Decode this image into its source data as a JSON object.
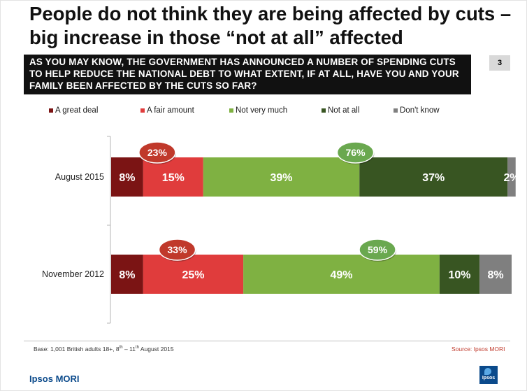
{
  "slide": {
    "title": "People do not think they are being affected by cuts – big increase in those “not at all” affected",
    "question": "AS YOU MAY KNOW, THE GOVERNMENT HAS ANNOUNCED A NUMBER OF SPENDING CUTS TO HELP REDUCE THE NATIONAL DEBT TO WHAT EXTENT, IF AT ALL, HAVE YOU AND YOUR FAMILY BEEN AFFECTED BY THE CUTS SO FAR?",
    "page_number": "3",
    "base_prefix": "Base: 1,001 British adults 18+, 8",
    "base_sup1": "th",
    "base_mid": " – 11",
    "base_sup2": "th",
    "base_suffix": " August 2015",
    "source": "Source: Ipsos MORI",
    "brand": "Ipsos MORI",
    "logo_text": "Ipsos"
  },
  "chart_data": {
    "type": "bar",
    "orientation": "horizontal",
    "stacked": true,
    "categories": [
      "August 2015",
      "November 2012"
    ],
    "series": [
      {
        "name": "A great deal",
        "values": [
          8,
          8
        ],
        "color": "#7b1414"
      },
      {
        "name": "A fair amount",
        "values": [
          15,
          25
        ],
        "color": "#e03c3c"
      },
      {
        "name": "Not very much",
        "values": [
          39,
          49
        ],
        "color": "#7fb142"
      },
      {
        "name": "Not at all",
        "values": [
          37,
          10
        ],
        "color": "#385522"
      },
      {
        "name": "Don't know",
        "values": [
          2,
          8
        ],
        "color": "#7f7f7f"
      }
    ],
    "data_labels": [
      [
        "8%",
        "15%",
        "39%",
        "37%",
        "2%"
      ],
      [
        "8%",
        "25%",
        "49%",
        "10%",
        "8%"
      ]
    ],
    "callouts": [
      {
        "category": "August 2015",
        "group": "affected",
        "label": "23%",
        "value": 23,
        "color": "#c0392b"
      },
      {
        "category": "August 2015",
        "group": "not affected",
        "label": "76%",
        "value": 76,
        "color": "#6aa84f"
      },
      {
        "category": "November 2012",
        "group": "affected",
        "label": "33%",
        "value": 33,
        "color": "#c0392b"
      },
      {
        "category": "November 2012",
        "group": "not affected",
        "label": "59%",
        "value": 59,
        "color": "#6aa84f"
      }
    ],
    "xlim": [
      0,
      100
    ],
    "legend_position": "top"
  }
}
